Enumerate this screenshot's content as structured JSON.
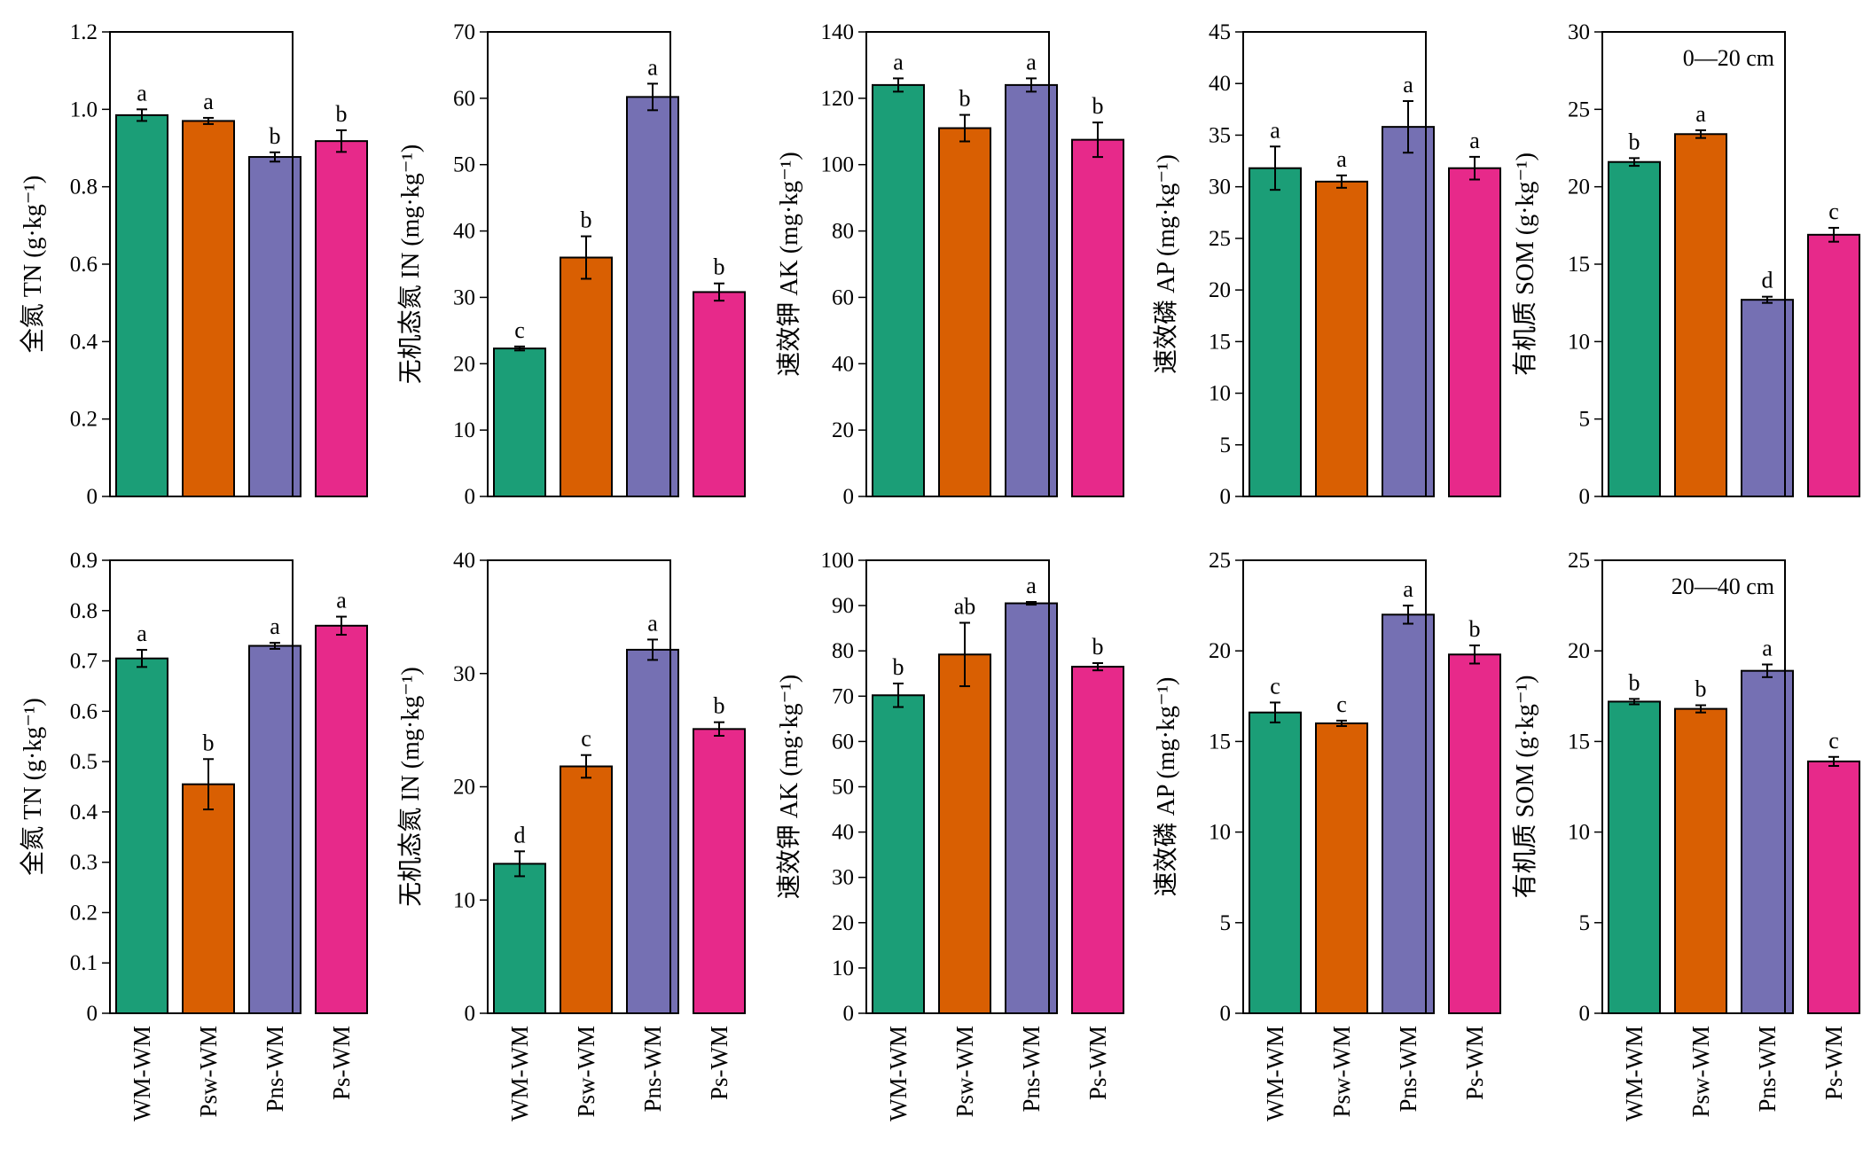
{
  "colors": {
    "WM-WM": "#1b9e77",
    "Psw-WM": "#d95f02",
    "Pns-WM": "#7570b3",
    "Ps-WM": "#e7298a",
    "axis": "#000000"
  },
  "chart_data": [
    {
      "type": "bar",
      "row": 0,
      "col": 0,
      "ylabel": "全氮 TN (g·kg⁻¹)",
      "ylim": [
        0,
        1.2
      ],
      "yticks": [
        "0",
        "0.2",
        "0.4",
        "0.6",
        "0.8",
        "1.0",
        "1.2"
      ],
      "categories": [
        "WM-WM",
        "Psw-WM",
        "Pns-WM",
        "Ps-WM"
      ],
      "values": [
        0.985,
        0.97,
        0.877,
        0.918
      ],
      "errors": [
        0.015,
        0.008,
        0.012,
        0.028
      ],
      "letters": [
        "a",
        "a",
        "b",
        "b"
      ]
    },
    {
      "type": "bar",
      "row": 0,
      "col": 1,
      "ylabel": "无机态氮 IN (mg·kg⁻¹)",
      "ylim": [
        0,
        70
      ],
      "yticks": [
        "0",
        "10",
        "20",
        "30",
        "40",
        "50",
        "60",
        "70"
      ],
      "categories": [
        "WM-WM",
        "Psw-WM",
        "Pns-WM",
        "Ps-WM"
      ],
      "values": [
        22.3,
        36.0,
        60.2,
        30.8
      ],
      "errors": [
        0.3,
        3.2,
        2.0,
        1.3
      ],
      "letters": [
        "c",
        "b",
        "a",
        "b"
      ]
    },
    {
      "type": "bar",
      "row": 0,
      "col": 2,
      "ylabel": "速效钾 AK (mg·kg⁻¹)",
      "ylim": [
        0,
        140
      ],
      "yticks": [
        "0",
        "20",
        "40",
        "60",
        "80",
        "100",
        "120",
        "140"
      ],
      "categories": [
        "WM-WM",
        "Psw-WM",
        "Pns-WM",
        "Ps-WM"
      ],
      "values": [
        124,
        111,
        124,
        107.5
      ],
      "errors": [
        2.0,
        4.0,
        2.0,
        5.2
      ],
      "letters": [
        "a",
        "b",
        "a",
        "b"
      ]
    },
    {
      "type": "bar",
      "row": 0,
      "col": 3,
      "ylabel": "速效磷 AP (mg·kg⁻¹)",
      "ylim": [
        0,
        45
      ],
      "yticks": [
        "0",
        "5",
        "10",
        "15",
        "20",
        "25",
        "30",
        "35",
        "40",
        "45"
      ],
      "categories": [
        "WM-WM",
        "Psw-WM",
        "Pns-WM",
        "Ps-WM"
      ],
      "values": [
        31.8,
        30.5,
        35.8,
        31.8
      ],
      "errors": [
        2.1,
        0.6,
        2.5,
        1.1
      ],
      "letters": [
        "a",
        "a",
        "a",
        "a"
      ]
    },
    {
      "type": "bar",
      "row": 0,
      "col": 4,
      "ylabel": "有机质 SOM (g·kg⁻¹)",
      "ylim": [
        0,
        30
      ],
      "yticks": [
        "0",
        "5",
        "10",
        "15",
        "20",
        "25",
        "30"
      ],
      "categories": [
        "WM-WM",
        "Psw-WM",
        "Pns-WM",
        "Ps-WM"
      ],
      "values": [
        21.6,
        23.4,
        12.7,
        16.9
      ],
      "errors": [
        0.25,
        0.25,
        0.2,
        0.45
      ],
      "letters": [
        "b",
        "a",
        "d",
        "c"
      ],
      "annotation": "0—20 cm"
    },
    {
      "type": "bar",
      "row": 1,
      "col": 0,
      "ylabel": "全氮 TN (g·kg⁻¹)",
      "ylim": [
        0,
        0.9
      ],
      "yticks": [
        "0",
        "0.1",
        "0.2",
        "0.3",
        "0.4",
        "0.5",
        "0.6",
        "0.7",
        "0.8",
        "0.9"
      ],
      "categories": [
        "WM-WM",
        "Psw-WM",
        "Pns-WM",
        "Ps-WM"
      ],
      "values": [
        0.705,
        0.455,
        0.73,
        0.77
      ],
      "errors": [
        0.017,
        0.05,
        0.006,
        0.018
      ],
      "letters": [
        "a",
        "b",
        "a",
        "a"
      ]
    },
    {
      "type": "bar",
      "row": 1,
      "col": 1,
      "ylabel": "无机态氮 IN (mg·kg⁻¹)",
      "ylim": [
        0,
        40
      ],
      "yticks": [
        "0",
        "10",
        "20",
        "30",
        "40"
      ],
      "categories": [
        "WM-WM",
        "Psw-WM",
        "Pns-WM",
        "Ps-WM"
      ],
      "values": [
        13.2,
        21.8,
        32.1,
        25.1
      ],
      "errors": [
        1.1,
        1.0,
        0.9,
        0.6
      ],
      "letters": [
        "d",
        "c",
        "a",
        "b"
      ]
    },
    {
      "type": "bar",
      "row": 1,
      "col": 2,
      "ylabel": "速效钾 AK (mg·kg⁻¹)",
      "ylim": [
        0,
        100
      ],
      "yticks": [
        "0",
        "10",
        "20",
        "30",
        "40",
        "50",
        "60",
        "70",
        "80",
        "90",
        "100"
      ],
      "categories": [
        "WM-WM",
        "Psw-WM",
        "Pns-WM",
        "Ps-WM"
      ],
      "values": [
        70.2,
        79.2,
        90.5,
        76.5
      ],
      "errors": [
        2.6,
        7.0,
        0.3,
        0.8
      ],
      "letters": [
        "b",
        "ab",
        "a",
        "b"
      ]
    },
    {
      "type": "bar",
      "row": 1,
      "col": 3,
      "ylabel": "速效磷 AP (mg·kg⁻¹)",
      "ylim": [
        0,
        25
      ],
      "yticks": [
        "0",
        "5",
        "10",
        "15",
        "20",
        "25"
      ],
      "categories": [
        "WM-WM",
        "Psw-WM",
        "Pns-WM",
        "Ps-WM"
      ],
      "values": [
        16.6,
        16.0,
        22.0,
        19.8
      ],
      "errors": [
        0.55,
        0.15,
        0.5,
        0.5
      ],
      "letters": [
        "c",
        "c",
        "a",
        "b"
      ]
    },
    {
      "type": "bar",
      "row": 1,
      "col": 4,
      "ylabel": "有机质 SOM (g·kg⁻¹)",
      "ylim": [
        0,
        25
      ],
      "yticks": [
        "0",
        "5",
        "10",
        "15",
        "20",
        "25"
      ],
      "categories": [
        "WM-WM",
        "Psw-WM",
        "Pns-WM",
        "Ps-WM"
      ],
      "values": [
        17.2,
        16.8,
        18.9,
        13.9
      ],
      "errors": [
        0.15,
        0.2,
        0.35,
        0.25
      ],
      "letters": [
        "b",
        "b",
        "a",
        "c"
      ],
      "annotation": "20—40 cm"
    }
  ]
}
